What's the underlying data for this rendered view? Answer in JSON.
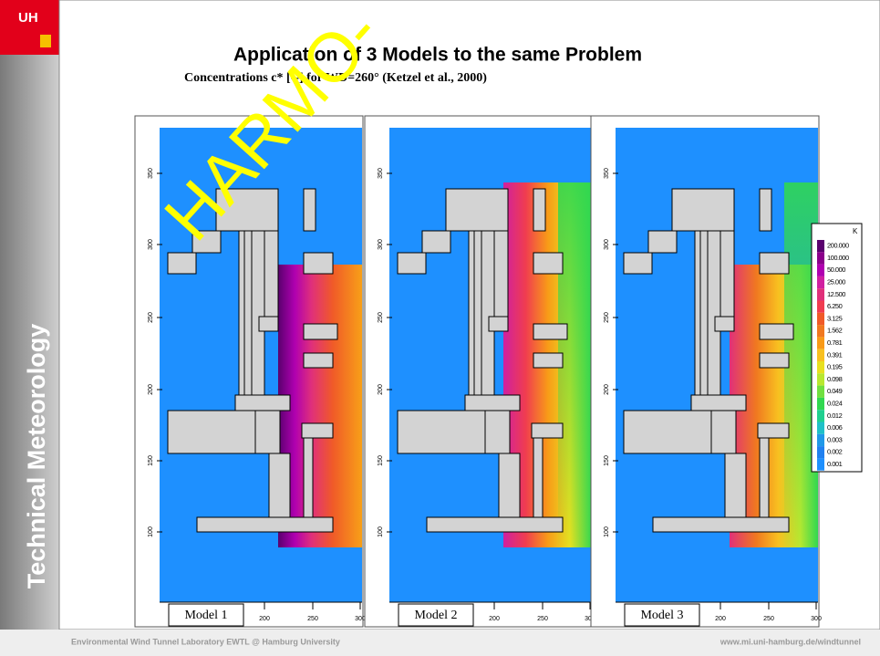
{
  "logo": "UH",
  "sidebar": "Technical Meteorology",
  "title": "Application of 3 Models to the same Problem",
  "subtitle": "Concentrations c* [--] for WD=260°   (Ketzel et al., 2000)",
  "watermark": "HARMO-",
  "panels": [
    {
      "label": "Model 1"
    },
    {
      "label": "Model 2"
    },
    {
      "label": "Model 3"
    }
  ],
  "y_ticks": [
    "350",
    "300",
    "250",
    "200",
    "150",
    "100"
  ],
  "x_ticks": [
    "200",
    "250",
    "300"
  ],
  "colorbar": {
    "title": "K",
    "labels": [
      "200.000",
      "100.000",
      "50.000",
      "25.000",
      "12.500",
      "6.250",
      "3.125",
      "1.562",
      "0.781",
      "0.391",
      "0.195",
      "0.098",
      "0.049",
      "0.024",
      "0.012",
      "0.006",
      "0.003",
      "0.002",
      "0.001"
    ]
  },
  "footer": {
    "left": "Environmental Wind Tunnel Laboratory EWTL @ Hamburg University",
    "right": "www.mi.uni-hamburg.de/windtunnel"
  }
}
